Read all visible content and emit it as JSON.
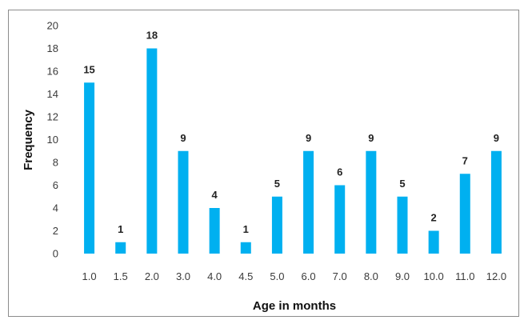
{
  "chart_data": {
    "type": "bar",
    "categories": [
      "1.0",
      "1.5",
      "2.0",
      "3.0",
      "4.0",
      "4.5",
      "5.0",
      "6.0",
      "7.0",
      "8.0",
      "9.0",
      "10.0",
      "11.0",
      "12.0"
    ],
    "values": [
      15,
      1,
      18,
      9,
      4,
      1,
      5,
      9,
      6,
      9,
      5,
      2,
      7,
      9
    ],
    "data_labels": [
      "15",
      "1",
      "18",
      "9",
      "4",
      "1",
      "5",
      "9",
      "6",
      "9",
      "5",
      "2",
      "7",
      "9"
    ],
    "xlabel": "Age in months",
    "ylabel": "Frequency",
    "ylim": [
      0,
      20
    ],
    "yticks": [
      "0",
      "2",
      "4",
      "6",
      "8",
      "10",
      "12",
      "14",
      "16",
      "18",
      "20"
    ],
    "grid": false,
    "legend": "none",
    "bar_color": "#00b0f0"
  }
}
